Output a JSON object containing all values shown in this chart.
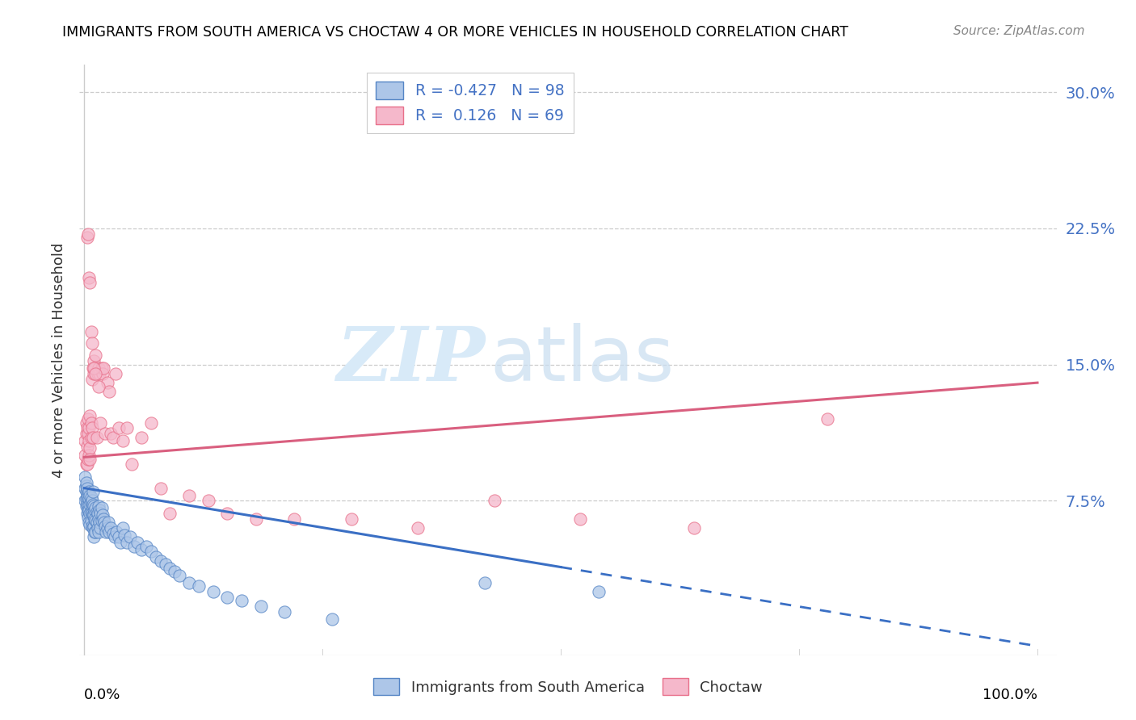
{
  "title": "IMMIGRANTS FROM SOUTH AMERICA VS CHOCTAW 4 OR MORE VEHICLES IN HOUSEHOLD CORRELATION CHART",
  "source": "Source: ZipAtlas.com",
  "ylabel": "4 or more Vehicles in Household",
  "yticks": [
    "7.5%",
    "15.0%",
    "22.5%",
    "30.0%"
  ],
  "ytick_vals": [
    0.075,
    0.15,
    0.225,
    0.3
  ],
  "ymin": -0.01,
  "ymax": 0.315,
  "xmin": -0.005,
  "xmax": 1.02,
  "blue_R": -0.427,
  "blue_N": 98,
  "pink_R": 0.126,
  "pink_N": 69,
  "blue_color": "#adc6e8",
  "pink_color": "#f5b8cb",
  "blue_edge_color": "#5585c5",
  "pink_edge_color": "#e8708a",
  "blue_line_color": "#3a6fc4",
  "pink_line_color": "#d95f7f",
  "legend_label_blue": "Immigrants from South America",
  "legend_label_pink": "Choctaw",
  "watermark_zip": "ZIP",
  "watermark_atlas": "atlas",
  "blue_line_x0": 0.0,
  "blue_line_y0": 0.082,
  "blue_line_x1": 1.0,
  "blue_line_y1": -0.005,
  "blue_line_solid_end": 0.5,
  "pink_line_x0": 0.0,
  "pink_line_y0": 0.099,
  "pink_line_x1": 1.0,
  "pink_line_y1": 0.14,
  "blue_scatter_x": [
    0.001,
    0.001,
    0.001,
    0.002,
    0.002,
    0.002,
    0.002,
    0.002,
    0.003,
    0.003,
    0.003,
    0.003,
    0.003,
    0.004,
    0.004,
    0.004,
    0.004,
    0.005,
    0.005,
    0.005,
    0.005,
    0.006,
    0.006,
    0.006,
    0.006,
    0.007,
    0.007,
    0.007,
    0.007,
    0.008,
    0.008,
    0.008,
    0.008,
    0.009,
    0.009,
    0.009,
    0.009,
    0.01,
    0.01,
    0.01,
    0.01,
    0.011,
    0.011,
    0.011,
    0.012,
    0.012,
    0.012,
    0.013,
    0.013,
    0.014,
    0.014,
    0.015,
    0.015,
    0.015,
    0.016,
    0.016,
    0.017,
    0.017,
    0.018,
    0.018,
    0.019,
    0.02,
    0.021,
    0.022,
    0.023,
    0.024,
    0.025,
    0.026,
    0.028,
    0.03,
    0.032,
    0.034,
    0.036,
    0.038,
    0.04,
    0.042,
    0.045,
    0.048,
    0.052,
    0.056,
    0.06,
    0.065,
    0.07,
    0.075,
    0.08,
    0.085,
    0.09,
    0.095,
    0.1,
    0.11,
    0.12,
    0.135,
    0.15,
    0.165,
    0.185,
    0.21,
    0.26,
    0.42,
    0.54
  ],
  "blue_scatter_y": [
    0.075,
    0.082,
    0.088,
    0.08,
    0.083,
    0.072,
    0.076,
    0.085,
    0.079,
    0.073,
    0.068,
    0.082,
    0.077,
    0.078,
    0.072,
    0.066,
    0.07,
    0.076,
    0.08,
    0.07,
    0.063,
    0.078,
    0.073,
    0.068,
    0.062,
    0.074,
    0.069,
    0.064,
    0.077,
    0.072,
    0.068,
    0.061,
    0.075,
    0.073,
    0.067,
    0.06,
    0.08,
    0.072,
    0.067,
    0.061,
    0.055,
    0.07,
    0.065,
    0.058,
    0.071,
    0.064,
    0.058,
    0.069,
    0.063,
    0.068,
    0.06,
    0.072,
    0.065,
    0.058,
    0.07,
    0.063,
    0.068,
    0.06,
    0.071,
    0.064,
    0.067,
    0.065,
    0.063,
    0.061,
    0.058,
    0.06,
    0.063,
    0.058,
    0.06,
    0.057,
    0.055,
    0.058,
    0.055,
    0.052,
    0.06,
    0.056,
    0.052,
    0.055,
    0.05,
    0.052,
    0.048,
    0.05,
    0.047,
    0.044,
    0.042,
    0.04,
    0.038,
    0.036,
    0.034,
    0.03,
    0.028,
    0.025,
    0.022,
    0.02,
    0.017,
    0.014,
    0.01,
    0.03,
    0.025
  ],
  "pink_scatter_x": [
    0.001,
    0.001,
    0.002,
    0.002,
    0.002,
    0.003,
    0.003,
    0.003,
    0.004,
    0.004,
    0.004,
    0.005,
    0.005,
    0.005,
    0.006,
    0.006,
    0.006,
    0.007,
    0.007,
    0.008,
    0.008,
    0.009,
    0.009,
    0.01,
    0.01,
    0.011,
    0.012,
    0.013,
    0.014,
    0.015,
    0.016,
    0.017,
    0.018,
    0.019,
    0.02,
    0.022,
    0.024,
    0.026,
    0.028,
    0.03,
    0.033,
    0.036,
    0.04,
    0.045,
    0.05,
    0.06,
    0.07,
    0.08,
    0.09,
    0.11,
    0.13,
    0.15,
    0.18,
    0.22,
    0.28,
    0.35,
    0.43,
    0.52,
    0.64,
    0.78,
    0.003,
    0.004,
    0.005,
    0.006,
    0.007,
    0.008,
    0.01,
    0.012,
    0.015
  ],
  "pink_scatter_y": [
    0.1,
    0.108,
    0.095,
    0.112,
    0.118,
    0.105,
    0.115,
    0.095,
    0.112,
    0.098,
    0.12,
    0.108,
    0.1,
    0.115,
    0.122,
    0.104,
    0.098,
    0.11,
    0.118,
    0.142,
    0.115,
    0.148,
    0.11,
    0.145,
    0.152,
    0.148,
    0.155,
    0.11,
    0.145,
    0.148,
    0.145,
    0.118,
    0.148,
    0.145,
    0.148,
    0.112,
    0.14,
    0.135,
    0.112,
    0.11,
    0.145,
    0.115,
    0.108,
    0.115,
    0.095,
    0.11,
    0.118,
    0.082,
    0.068,
    0.078,
    0.075,
    0.068,
    0.065,
    0.065,
    0.065,
    0.06,
    0.075,
    0.065,
    0.06,
    0.12,
    0.22,
    0.222,
    0.198,
    0.195,
    0.168,
    0.162,
    0.148,
    0.145,
    0.138
  ]
}
